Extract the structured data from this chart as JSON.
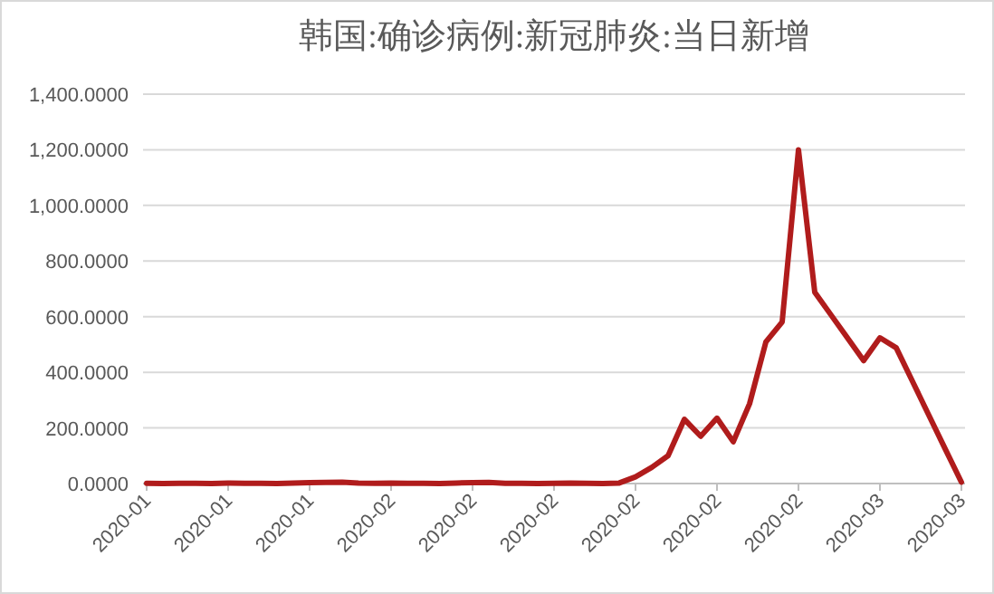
{
  "chart_data": {
    "type": "line",
    "title": "韩国:确诊病例:新冠肺炎:当日新增",
    "categories": [
      "2020-01",
      null,
      null,
      null,
      null,
      "2020-01",
      null,
      null,
      null,
      null,
      "2020-01",
      null,
      null,
      null,
      null,
      "2020-02",
      null,
      null,
      null,
      null,
      "2020-02",
      null,
      null,
      null,
      null,
      "2020-02",
      null,
      null,
      null,
      null,
      "2020-02",
      null,
      null,
      null,
      null,
      "2020-02",
      null,
      null,
      null,
      null,
      "2020-02",
      null,
      null,
      null,
      null,
      "2020-03",
      null,
      null,
      null,
      null,
      "2020-03"
    ],
    "series": [
      {
        "color": "#b01c1c",
        "values": [
          1,
          0,
          1,
          1,
          0,
          2,
          1,
          1,
          0,
          2,
          3,
          4,
          5,
          2,
          1,
          2,
          1,
          1,
          0,
          2,
          3,
          4,
          1,
          1,
          0,
          1,
          2,
          1,
          0,
          2,
          24,
          58,
          100,
          231,
          170,
          235,
          150,
          287,
          509,
          581,
          1200,
          688,
          606,
          524,
          442,
          524,
          488,
          367,
          246,
          125,
          5
        ]
      }
    ],
    "ylim": [
      0,
      1400
    ],
    "yticks": [
      {
        "value": 0,
        "label": "0.0000"
      },
      {
        "value": 200,
        "label": "200.0000"
      },
      {
        "value": 400,
        "label": "400.0000"
      },
      {
        "value": 600,
        "label": "600.0000"
      },
      {
        "value": 800,
        "label": "800.0000"
      },
      {
        "value": 1000,
        "label": "1,000.0000"
      },
      {
        "value": 1200,
        "label": "1,200.0000"
      },
      {
        "value": 1400,
        "label": "1,400.0000"
      }
    ],
    "grid": "y"
  }
}
